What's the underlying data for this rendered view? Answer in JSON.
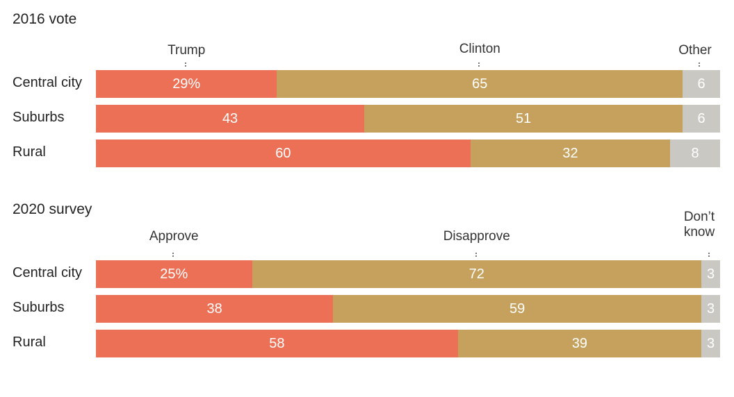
{
  "colors": {
    "first": "#ec7055",
    "second": "#c6a15d",
    "other": "#c9c8c3"
  },
  "chart_data": [
    {
      "type": "bar",
      "stacked": true,
      "orientation": "horizontal",
      "title": "2016 vote",
      "categories": [
        "Central city",
        "Suburbs",
        "Rural"
      ],
      "series": [
        {
          "name": "Trump",
          "values": [
            29,
            43,
            60
          ],
          "labels": [
            "29%",
            "43",
            "60"
          ]
        },
        {
          "name": "Clinton",
          "values": [
            65,
            51,
            32
          ],
          "labels": [
            "65",
            "51",
            "32"
          ]
        },
        {
          "name": "Other",
          "values": [
            6,
            6,
            8
          ],
          "labels": [
            "6",
            "6",
            "8"
          ]
        }
      ]
    },
    {
      "type": "bar",
      "stacked": true,
      "orientation": "horizontal",
      "title": "2020 survey",
      "categories": [
        "Central city",
        "Suburbs",
        "Rural"
      ],
      "series": [
        {
          "name": "Approve",
          "values": [
            25,
            38,
            58
          ],
          "labels": [
            "25%",
            "38",
            "58"
          ]
        },
        {
          "name": "Disapprove",
          "values": [
            72,
            59,
            39
          ],
          "labels": [
            "72",
            "59",
            "39"
          ]
        },
        {
          "name": "Don’t know",
          "name_lines": [
            "Don’t",
            "know"
          ],
          "values": [
            3,
            3,
            3
          ],
          "labels": [
            "3",
            "3",
            "3"
          ]
        }
      ]
    }
  ]
}
